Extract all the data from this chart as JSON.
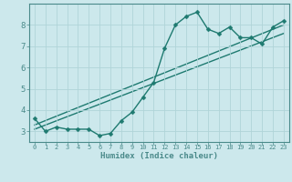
{
  "xlabel": "Humidex (Indice chaleur)",
  "bg_color": "#cce8ec",
  "line_color": "#1e7a70",
  "grid_color": "#b0d4d8",
  "spine_color": "#4a8a8a",
  "xlim": [
    -0.5,
    23.5
  ],
  "ylim": [
    2.5,
    9.0
  ],
  "yticks": [
    3,
    4,
    5,
    6,
    7,
    8
  ],
  "xticks": [
    0,
    1,
    2,
    3,
    4,
    5,
    6,
    7,
    8,
    9,
    10,
    11,
    12,
    13,
    14,
    15,
    16,
    17,
    18,
    19,
    20,
    21,
    22,
    23
  ],
  "series1_x": [
    0,
    1,
    2,
    3,
    4,
    5,
    6,
    7,
    8,
    9,
    10,
    11,
    12,
    13,
    14,
    15,
    16,
    17,
    18,
    19,
    20,
    21,
    22,
    23
  ],
  "series1_y": [
    3.6,
    3.0,
    3.2,
    3.1,
    3.1,
    3.1,
    2.8,
    2.9,
    3.5,
    3.9,
    4.6,
    5.3,
    6.9,
    8.0,
    8.4,
    8.6,
    7.8,
    7.6,
    7.9,
    7.4,
    7.4,
    7.1,
    7.9,
    8.2
  ],
  "series2_x": [
    0,
    23
  ],
  "series2_y": [
    3.1,
    7.6
  ],
  "series3_x": [
    0,
    23
  ],
  "series3_y": [
    3.3,
    8.0
  ],
  "marker_size": 2.5,
  "line_width": 1.0,
  "xlabel_fontsize": 6.5,
  "tick_fontsize_x": 5.0,
  "tick_fontsize_y": 6.5
}
